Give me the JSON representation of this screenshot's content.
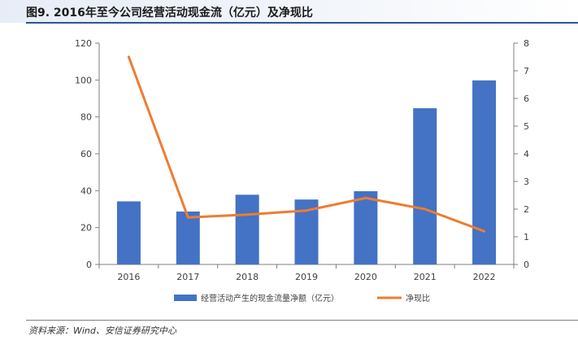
{
  "title": "图9. 2016年至今公司经营活动现金流（亿元）及净现比",
  "source": "资料来源：Wind、安信证券研究中心",
  "colors": {
    "bar": "#4472c4",
    "line": "#ed7d31",
    "title_rule": "#2f5597"
  },
  "chart_data": {
    "type": "bar",
    "categories": [
      "2016",
      "2017",
      "2018",
      "2019",
      "2020",
      "2021",
      "2022"
    ],
    "series": [
      {
        "name": "经营活动产生的现金流量净额（亿元）",
        "type": "bar",
        "axis": "left",
        "values": [
          34.2,
          28.7,
          37.8,
          35.2,
          39.7,
          84.7,
          99.8
        ]
      },
      {
        "name": "净现比",
        "type": "line",
        "axis": "right",
        "values": [
          7.5,
          1.7,
          1.8,
          1.95,
          2.4,
          2.0,
          1.2
        ]
      }
    ],
    "y_left": {
      "min": 0,
      "max": 120,
      "ticks": [
        0,
        20,
        40,
        60,
        80,
        100,
        120
      ]
    },
    "y_right": {
      "min": 0,
      "max": 8,
      "ticks": [
        0,
        1,
        2,
        3,
        4,
        5,
        6,
        7,
        8
      ]
    },
    "grid": false,
    "legend": "bottom"
  }
}
